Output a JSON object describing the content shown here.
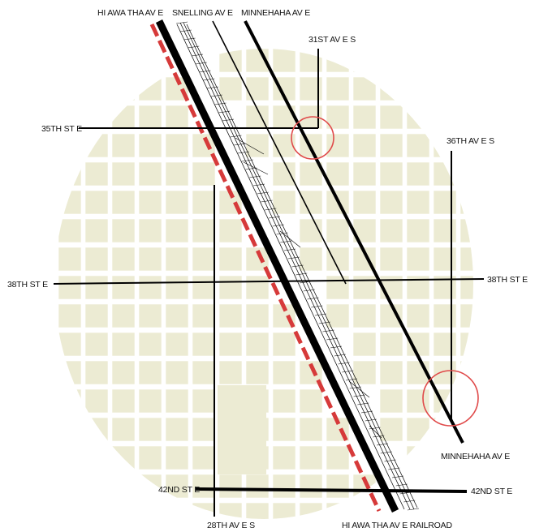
{
  "map": {
    "colors": {
      "background": "#ffffff",
      "block_fill": "#ecebd3",
      "road": "#000000",
      "railroad_dash": "#d63a3a",
      "highlight_circle": "#e04a4a"
    },
    "labels": {
      "hiawatha_top": "HI AWA THA   AV E",
      "snelling_top": "SNELLING   AV E",
      "minnehaha_top": "MINNEHAHA     AV E",
      "st31": "31ST   AV E S",
      "st35": "35TH ST    E",
      "ave36": "36TH   AV E S",
      "st38_left": "38TH ST    E",
      "st38_right": "38TH ST    E",
      "minnehaha_bottom": "MINNEHAHA      AV E",
      "st42_left": "42ND ST    E",
      "st42_right": "42ND ST    E",
      "ave28": "28TH   AV E S",
      "hiawatha_railroad": "HI AWA THA   AV E  RAILROAD"
    }
  }
}
